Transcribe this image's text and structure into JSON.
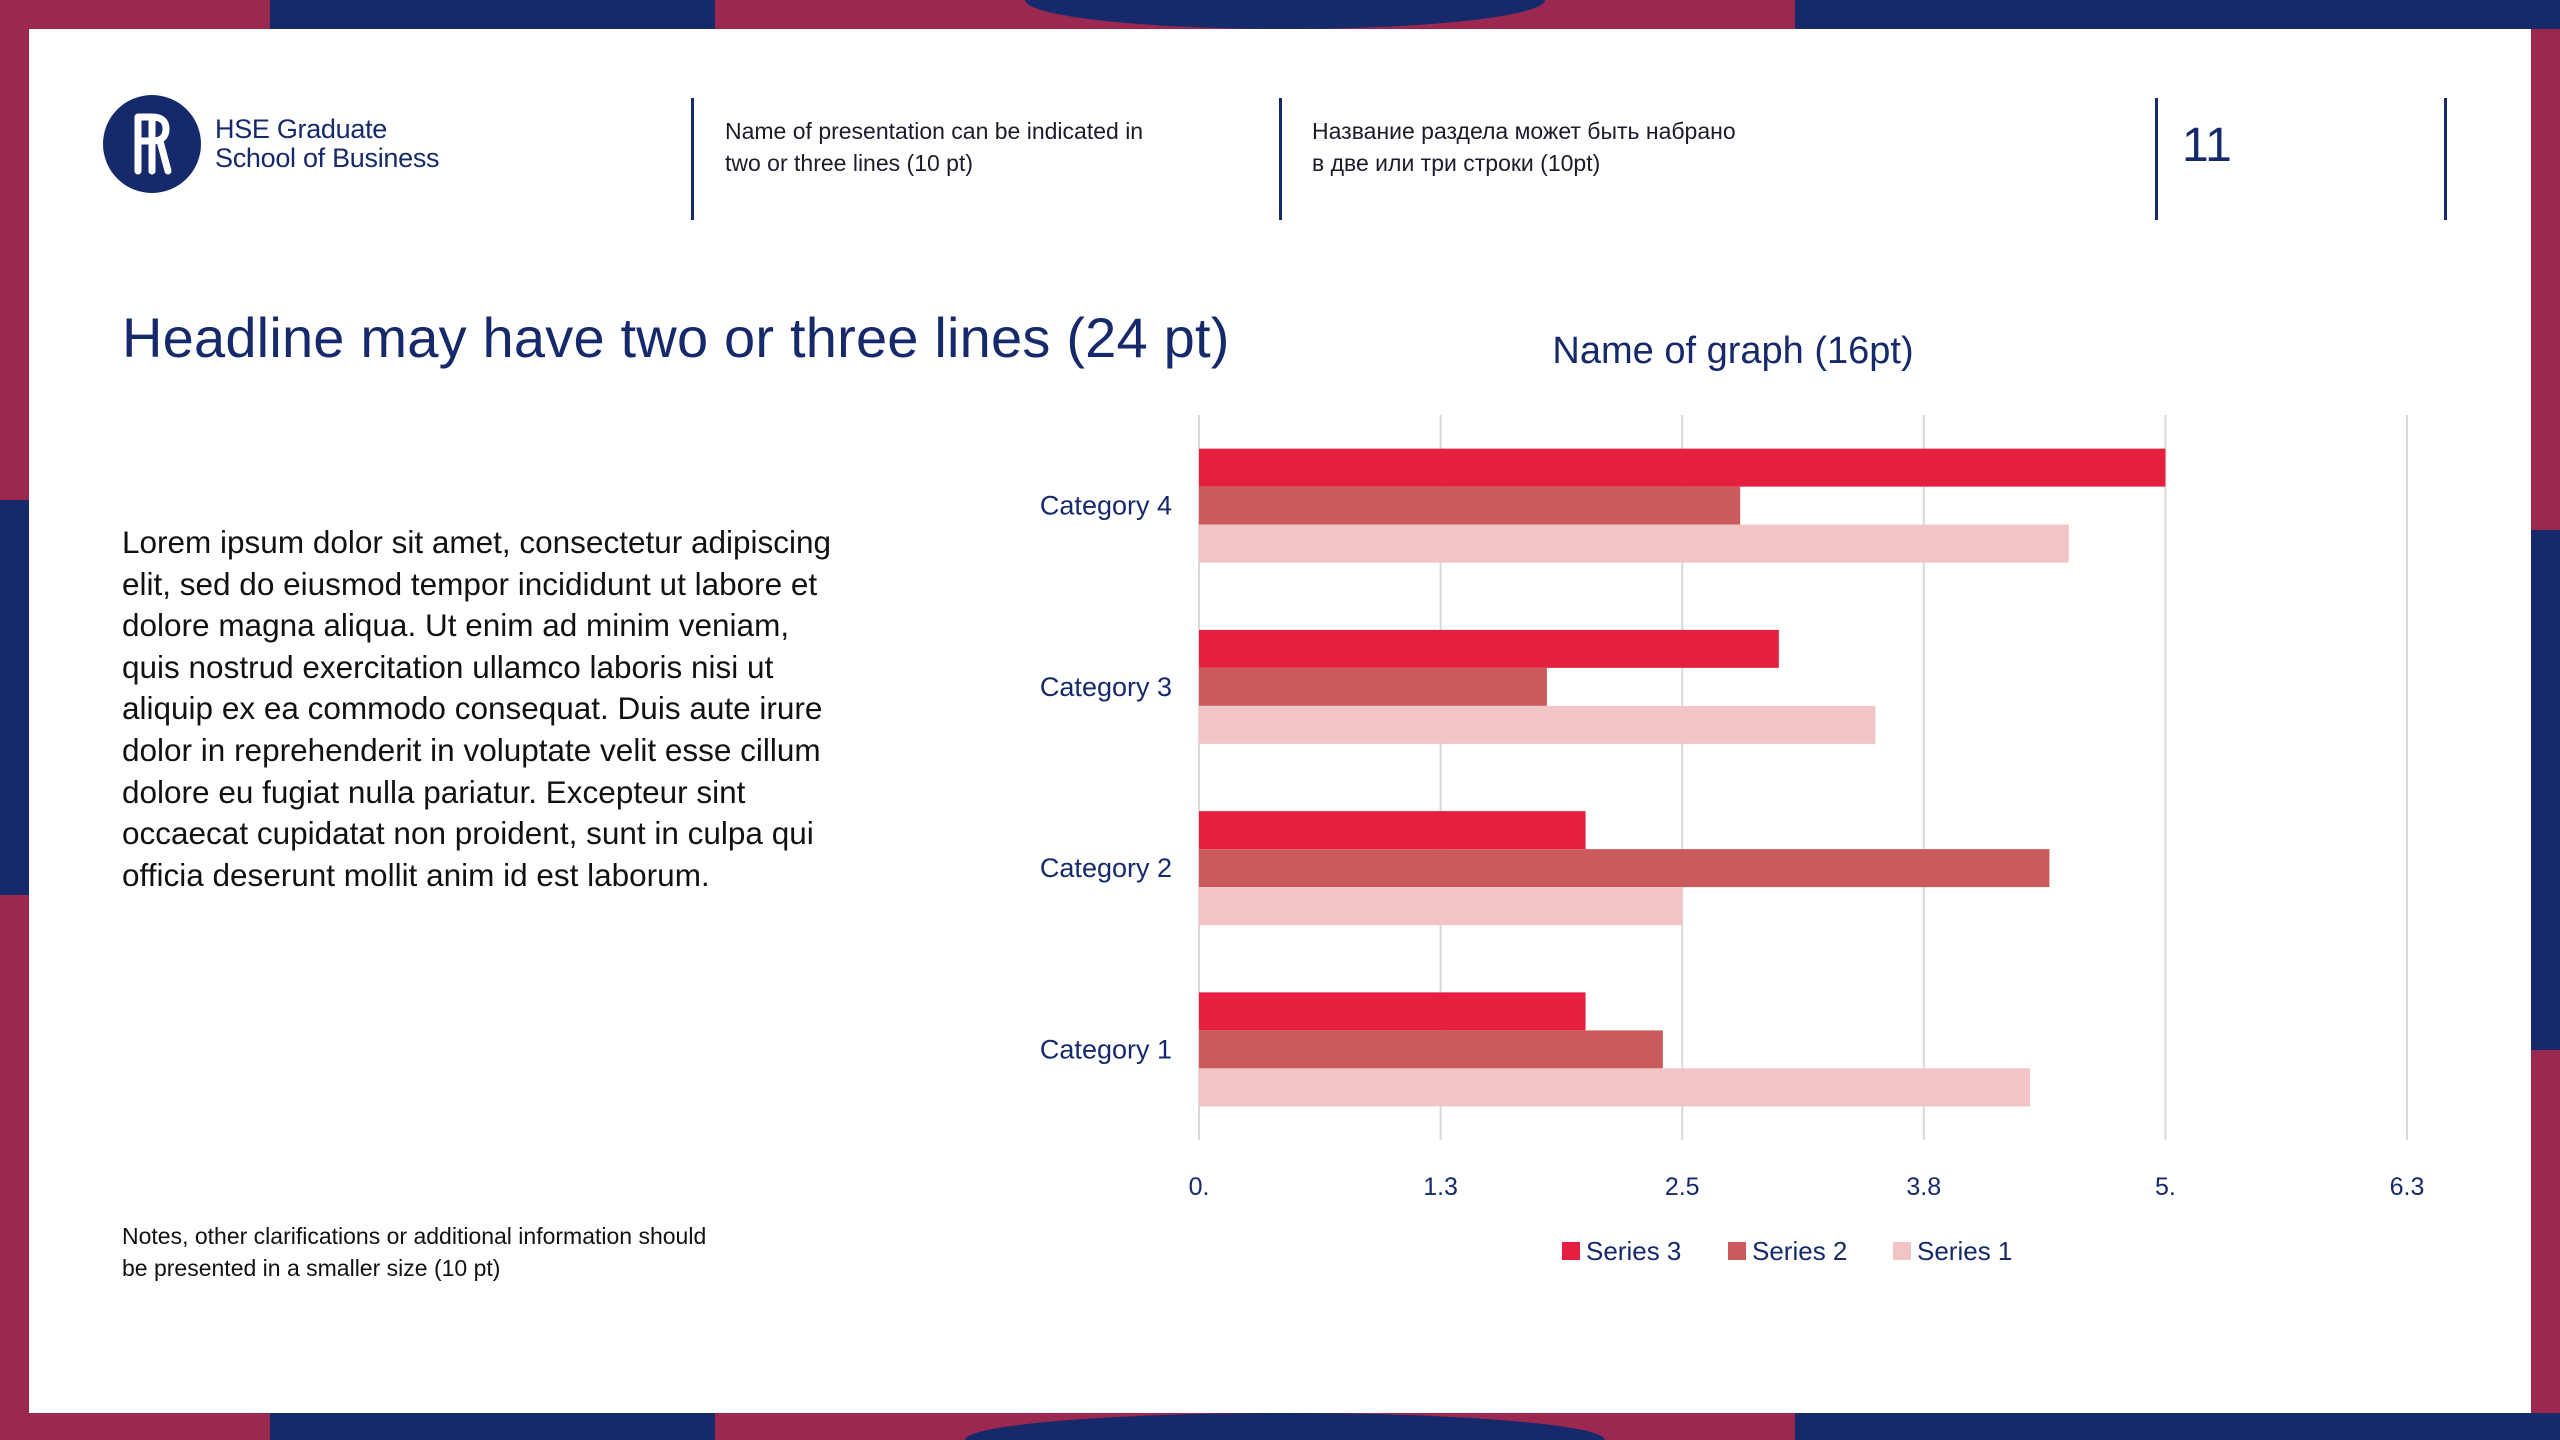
{
  "colors": {
    "navy": "#15296b",
    "crimson": "#9b2850",
    "series3": "#e51f40",
    "series2": "#cb5a5c",
    "series1": "#f3c4c6",
    "grid": "#d9d9d9"
  },
  "logo": {
    "mark": "Ꞁ",
    "line1": "HSE Graduate",
    "line2": "School of Business"
  },
  "header": {
    "presentation_line1": "Name of presentation can be indicated in",
    "presentation_line2": "two or three lines (10 pt)",
    "section_line1": "Название раздела может быть набрано",
    "section_line2": "в две или три строки (10pt)",
    "page_number": "11"
  },
  "headline": "Headline may have two or three lines (24 pt)",
  "body": "Lorem ipsum dolor sit amet, consectetur adipiscing elit, sed do eiusmod tempor incididunt ut labore et dolore magna aliqua. Ut enim ad minim veniam, quis nostrud exercitation ullamco laboris nisi ut aliquip ex ea commodo consequat. Duis aute irure dolor in reprehenderit in voluptate velit esse cillum dolore eu fugiat nulla pariatur. Excepteur sint occaecat cupidatat non proident, sunt in culpa qui officia deserunt mollit anim id est laborum.",
  "notes_line1": "Notes, other clarifications or additional information should",
  "notes_line2": "be presented in a smaller size (10 pt)",
  "chart_data": {
    "type": "bar",
    "orientation": "horizontal",
    "title": "Name of graph (16pt)",
    "categories": [
      "Category 1",
      "Category 2",
      "Category 3",
      "Category 4"
    ],
    "series": [
      {
        "name": "Series 3",
        "values": [
          2.0,
          2.0,
          3.0,
          5.0
        ]
      },
      {
        "name": "Series 2",
        "values": [
          2.4,
          4.4,
          1.8,
          2.8
        ]
      },
      {
        "name": "Series 1",
        "values": [
          4.3,
          2.5,
          3.5,
          4.5
        ]
      }
    ],
    "x_ticks": [
      "0.",
      "1.3",
      "2.5",
      "3.8",
      "5.",
      "6.3"
    ],
    "x_tick_values": [
      0,
      1.25,
      2.5,
      3.75,
      5,
      6.25
    ],
    "xlim": [
      0,
      6.25
    ],
    "grid": true,
    "legend": "bottom"
  }
}
